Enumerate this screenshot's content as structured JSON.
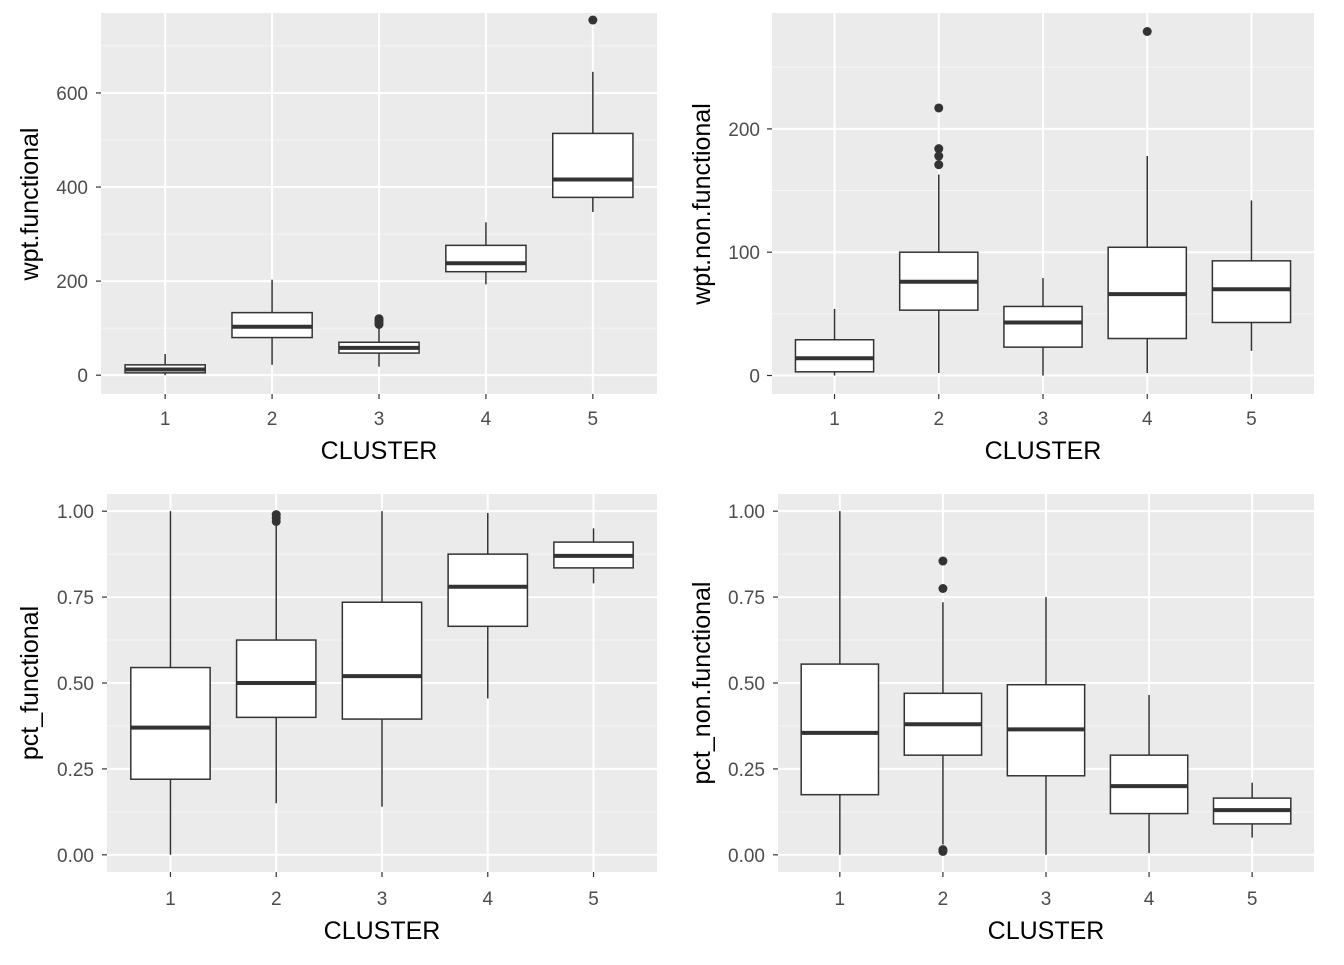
{
  "chart_data": [
    {
      "type": "box",
      "xlabel": "CLUSTER",
      "ylabel": "wpt.functional",
      "categories": [
        "1",
        "2",
        "3",
        "4",
        "5"
      ],
      "ylim": [
        -40,
        770
      ],
      "yticks": [
        0,
        200,
        400,
        600
      ],
      "ytick_labels": [
        "0",
        "200",
        "400",
        "600"
      ],
      "boxes": [
        {
          "category": "1",
          "whisker_low": 0,
          "q1": 5,
          "median": 12,
          "q3": 22,
          "whisker_high": 45,
          "outliers": []
        },
        {
          "category": "2",
          "whisker_low": 22,
          "q1": 80,
          "median": 103,
          "q3": 133,
          "whisker_high": 203,
          "outliers": []
        },
        {
          "category": "3",
          "whisker_low": 18,
          "q1": 47,
          "median": 58,
          "q3": 70,
          "whisker_high": 102,
          "outliers": [
            108,
            112,
            116,
            120
          ]
        },
        {
          "category": "4",
          "whisker_low": 193,
          "q1": 220,
          "median": 238,
          "q3": 276,
          "whisker_high": 325,
          "outliers": []
        },
        {
          "category": "5",
          "whisker_low": 347,
          "q1": 378,
          "median": 416,
          "q3": 514,
          "whisker_high": 645,
          "outliers": [
            755
          ]
        }
      ]
    },
    {
      "type": "box",
      "xlabel": "CLUSTER",
      "ylabel": "wpt.non.functional",
      "categories": [
        "1",
        "2",
        "3",
        "4",
        "5"
      ],
      "ylim": [
        -15,
        294
      ],
      "yticks": [
        0,
        100,
        200
      ],
      "ytick_labels": [
        "0",
        "100",
        "200"
      ],
      "boxes": [
        {
          "category": "1",
          "whisker_low": 0,
          "q1": 3,
          "median": 14,
          "q3": 29,
          "whisker_high": 54,
          "outliers": []
        },
        {
          "category": "2",
          "whisker_low": 2,
          "q1": 53,
          "median": 76,
          "q3": 100,
          "whisker_high": 163,
          "outliers": [
            171,
            178,
            184,
            217
          ]
        },
        {
          "category": "3",
          "whisker_low": 0,
          "q1": 23,
          "median": 43,
          "q3": 56,
          "whisker_high": 79,
          "outliers": []
        },
        {
          "category": "4",
          "whisker_low": 2,
          "q1": 30,
          "median": 66,
          "q3": 104,
          "whisker_high": 178,
          "outliers": [
            279
          ]
        },
        {
          "category": "5",
          "whisker_low": 20,
          "q1": 43,
          "median": 70,
          "q3": 93,
          "whisker_high": 142,
          "outliers": []
        }
      ]
    },
    {
      "type": "box",
      "xlabel": "CLUSTER",
      "ylabel": "pct_functional",
      "categories": [
        "1",
        "2",
        "3",
        "4",
        "5"
      ],
      "ylim": [
        -0.05,
        1.05
      ],
      "yticks": [
        0,
        0.25,
        0.5,
        0.75,
        1.0
      ],
      "ytick_labels": [
        "0.00",
        "0.25",
        "0.50",
        "0.75",
        "1.00"
      ],
      "boxes": [
        {
          "category": "1",
          "whisker_low": 0.0,
          "q1": 0.22,
          "median": 0.37,
          "q3": 0.545,
          "whisker_high": 1.0,
          "outliers": []
        },
        {
          "category": "2",
          "whisker_low": 0.15,
          "q1": 0.4,
          "median": 0.5,
          "q3": 0.625,
          "whisker_high": 0.96,
          "outliers": [
            0.97,
            0.98,
            0.99
          ]
        },
        {
          "category": "3",
          "whisker_low": 0.14,
          "q1": 0.395,
          "median": 0.52,
          "q3": 0.735,
          "whisker_high": 1.0,
          "outliers": []
        },
        {
          "category": "4",
          "whisker_low": 0.455,
          "q1": 0.665,
          "median": 0.78,
          "q3": 0.875,
          "whisker_high": 0.995,
          "outliers": []
        },
        {
          "category": "5",
          "whisker_low": 0.79,
          "q1": 0.835,
          "median": 0.87,
          "q3": 0.91,
          "whisker_high": 0.95,
          "outliers": []
        }
      ]
    },
    {
      "type": "box",
      "xlabel": "CLUSTER",
      "ylabel": "pct_non.functional",
      "categories": [
        "1",
        "2",
        "3",
        "4",
        "5"
      ],
      "ylim": [
        -0.05,
        1.05
      ],
      "yticks": [
        0,
        0.25,
        0.5,
        0.75,
        1.0
      ],
      "ytick_labels": [
        "0.00",
        "0.25",
        "0.50",
        "0.75",
        "1.00"
      ],
      "boxes": [
        {
          "category": "1",
          "whisker_low": 0.0,
          "q1": 0.175,
          "median": 0.355,
          "q3": 0.555,
          "whisker_high": 1.0,
          "outliers": []
        },
        {
          "category": "2",
          "whisker_low": 0.03,
          "q1": 0.29,
          "median": 0.38,
          "q3": 0.47,
          "whisker_high": 0.735,
          "outliers": [
            0.01,
            0.015,
            0.775,
            0.855
          ]
        },
        {
          "category": "3",
          "whisker_low": 0.0,
          "q1": 0.23,
          "median": 0.365,
          "q3": 0.495,
          "whisker_high": 0.75,
          "outliers": []
        },
        {
          "category": "4",
          "whisker_low": 0.005,
          "q1": 0.12,
          "median": 0.2,
          "q3": 0.29,
          "whisker_high": 0.465,
          "outliers": []
        },
        {
          "category": "5",
          "whisker_low": 0.05,
          "q1": 0.09,
          "median": 0.13,
          "q3": 0.165,
          "whisker_high": 0.21,
          "outliers": []
        }
      ]
    }
  ],
  "colors": {
    "panel_background": "#ebebeb",
    "grid_major": "#ffffff",
    "grid_minor": "#f5f5f5",
    "box_fill": "#ffffff",
    "box_stroke": "#333333",
    "tick_text": "#4d4d4d",
    "axis_title": "#000000"
  }
}
